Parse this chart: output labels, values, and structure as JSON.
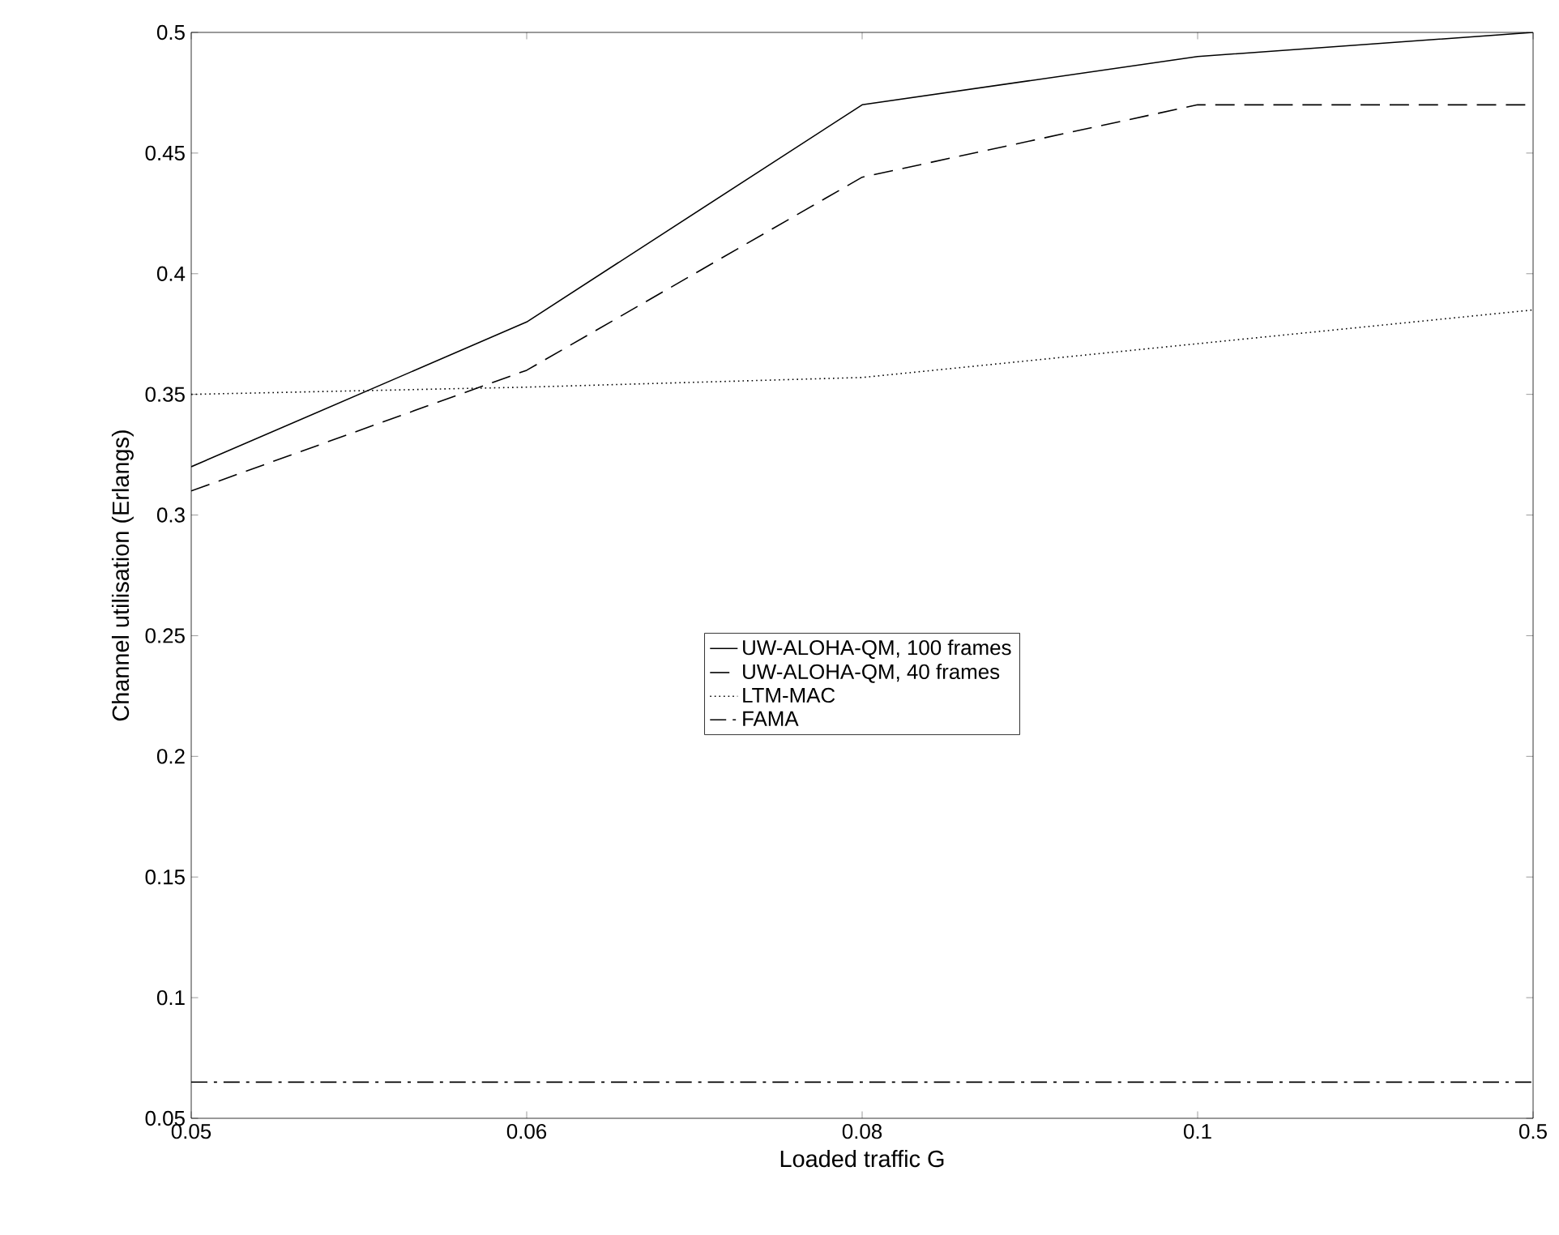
{
  "chart_data": {
    "type": "line",
    "xlabel": "Loaded traffic G",
    "ylabel": "Channel utilisation (Erlangs)",
    "categories": [
      "0.05",
      "0.06",
      "0.08",
      "0.1",
      "0.5"
    ],
    "series": [
      {
        "name": "UW-ALOHA-QM, 100 frames",
        "color": "#000000",
        "line_style": "solid",
        "values": [
          0.32,
          0.38,
          0.47,
          0.49,
          0.5
        ]
      },
      {
        "name": "UW-ALOHA-QM, 40 frames",
        "color": "#000000",
        "line_style": "dashed",
        "values": [
          0.31,
          0.36,
          0.44,
          0.47,
          0.47
        ]
      },
      {
        "name": "LTM-MAC",
        "color": "#000000",
        "line_style": "dotted",
        "values": [
          0.35,
          0.353,
          0.357,
          0.371,
          0.385
        ]
      },
      {
        "name": "FAMA",
        "color": "#000000",
        "line_style": "dashdot",
        "values": [
          0.065,
          0.065,
          0.065,
          0.065,
          0.065
        ]
      }
    ],
    "ylim": [
      0.05,
      0.5
    ],
    "yticks": [
      0.05,
      0.1,
      0.15,
      0.2,
      0.25,
      0.3,
      0.35,
      0.4,
      0.45,
      0.5
    ],
    "grid": false,
    "legend": "center",
    "marker": "none"
  }
}
